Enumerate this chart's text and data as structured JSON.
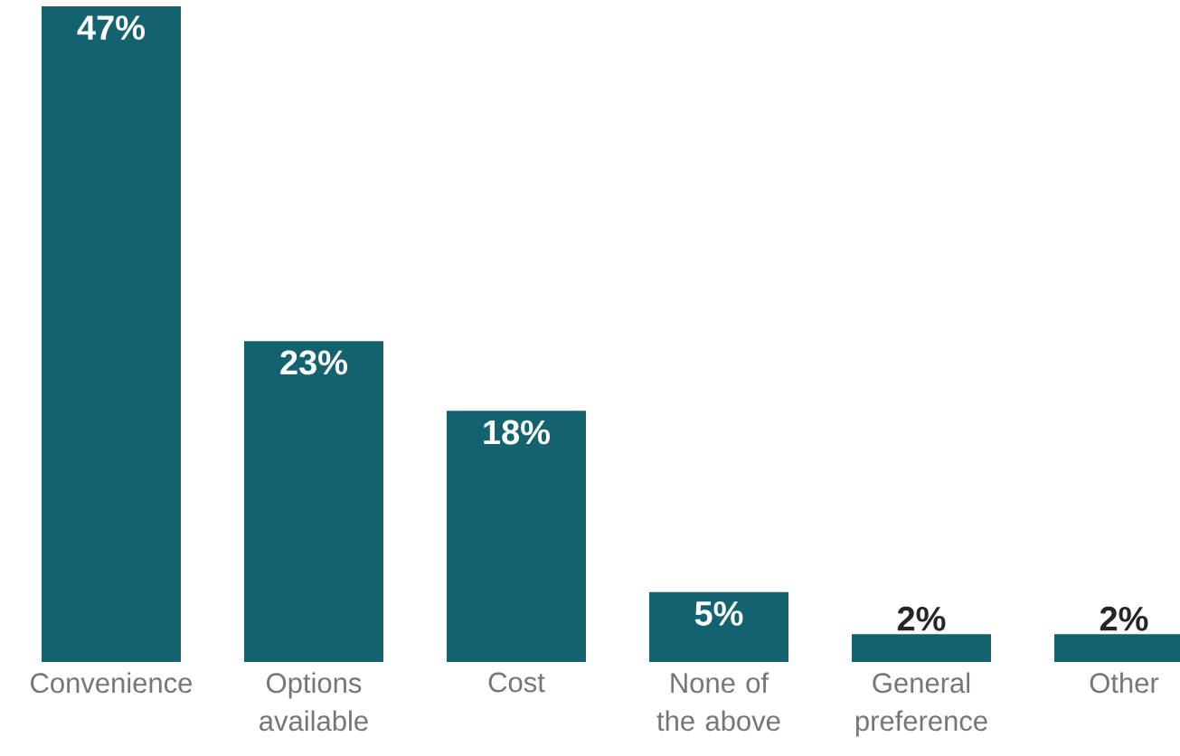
{
  "chart_data": {
    "type": "bar",
    "categories": [
      "Convenience",
      "Options available",
      "Cost",
      "None of the above",
      "General preference",
      "Other"
    ],
    "values": [
      47,
      23,
      18,
      5,
      2,
      2
    ],
    "value_labels": [
      "47%",
      "23%",
      "18%",
      "5%",
      "2%",
      "2%"
    ],
    "color": "#12636f"
  }
}
